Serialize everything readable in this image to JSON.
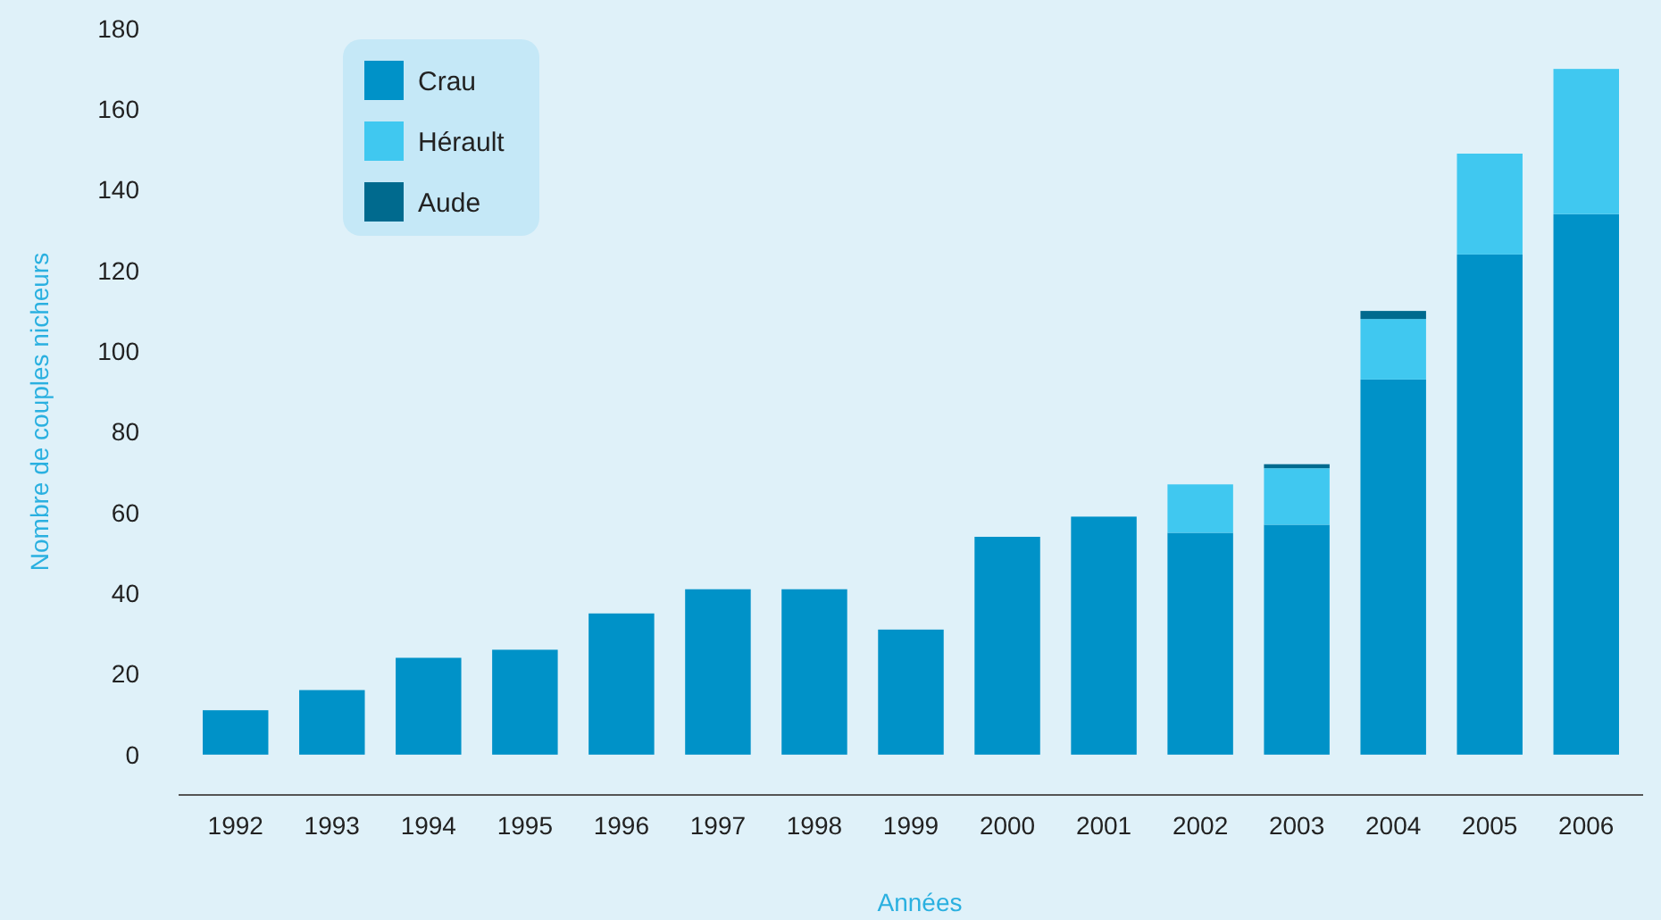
{
  "chart_data": {
    "type": "bar",
    "stacked": true,
    "xlabel": "Années",
    "ylabel": "Nombre de couples nicheurs",
    "categories": [
      "1992",
      "1993",
      "1994",
      "1995",
      "1996",
      "1997",
      "1998",
      "1999",
      "2000",
      "2001",
      "2002",
      "2003",
      "2004",
      "2005",
      "2006"
    ],
    "series": [
      {
        "name": "Crau",
        "color": "#0092c8",
        "values": [
          11,
          16,
          24,
          26,
          35,
          41,
          41,
          31,
          54,
          59,
          55,
          57,
          93,
          124,
          134
        ]
      },
      {
        "name": "Hérault",
        "color": "#40c8f0",
        "values": [
          0,
          0,
          0,
          0,
          0,
          0,
          0,
          0,
          0,
          0,
          12,
          14,
          15,
          25,
          36
        ]
      },
      {
        "name": "Aude",
        "color": "#006a8e",
        "values": [
          0,
          0,
          0,
          0,
          0,
          0,
          0,
          0,
          0,
          0,
          0,
          1,
          2,
          0,
          0
        ]
      }
    ],
    "ylim": [
      -10,
      180
    ],
    "yticks": [
      0,
      20,
      40,
      60,
      80,
      100,
      120,
      140,
      160,
      180
    ],
    "grid": false,
    "legend": "top left"
  }
}
